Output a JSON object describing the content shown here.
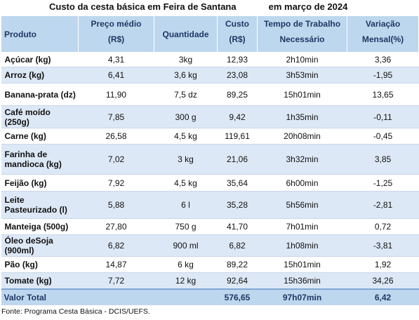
{
  "title": {
    "main": "Custo da cesta básica em Feira de Santana",
    "period": "em março de 2024"
  },
  "headers": {
    "produto": "Produto",
    "preco_line1": "Preço médio",
    "preco_line2": "(R$)",
    "quantidade": "Quantidade",
    "custo_line1": "Custo",
    "custo_line2": "(R$)",
    "tempo_line1": "Tempo de Trabalho",
    "tempo_line2": "Necessário",
    "variacao_line1": "Variação",
    "variacao_line2": "Mensal(%)"
  },
  "rows": [
    {
      "produto": "Açúcar (kg)",
      "preco": "4,31",
      "quantidade": "3kg",
      "custo": "12,93",
      "tempo": "2h10min",
      "variacao": "3,36"
    },
    {
      "produto": "Arroz (kg)",
      "preco": "6,41",
      "quantidade": "3,6 kg",
      "custo": "23,08",
      "tempo": "3h53min",
      "variacao": "-1,95"
    },
    {
      "produto": "Banana-prata (dz)",
      "preco": "11,90",
      "quantidade": "7,5 dz",
      "custo": "89,25",
      "tempo": "15h01min",
      "variacao": "13,65"
    },
    {
      "produto": "Café moído (250g)",
      "preco": "7,85",
      "quantidade": "300 g",
      "custo": "9,42",
      "tempo": "1h35min",
      "variacao": "-0,11"
    },
    {
      "produto": "Carne (kg)",
      "preco": "26,58",
      "quantidade": "4,5 kg",
      "custo": "119,61",
      "tempo": "20h08min",
      "variacao": "-0,45"
    },
    {
      "produto": "Farinha de mandioca (kg)",
      "preco": "7,02",
      "quantidade": "3 kg",
      "custo": "21,06",
      "tempo": "3h32min",
      "variacao": "3,85"
    },
    {
      "produto": "Feijão (kg)",
      "preco": "7,92",
      "quantidade": "4,5 kg",
      "custo": "35,64",
      "tempo": "6h00min",
      "variacao": "-1,25"
    },
    {
      "produto": "Leite Pasteurizado (l)",
      "preco": "5,88",
      "quantidade": "6 l",
      "custo": "35,28",
      "tempo": "5h56min",
      "variacao": "-2,81"
    },
    {
      "produto": "Manteiga (500g)",
      "preco": "27,80",
      "quantidade": "750 g",
      "custo": "41,70",
      "tempo": "7h01min",
      "variacao": "0,72"
    },
    {
      "produto": "Óleo deSoja (900ml)",
      "preco": "6,82",
      "quantidade": "900 ml",
      "custo": "6,82",
      "tempo": "1h08min",
      "variacao": "-3,81"
    },
    {
      "produto": "Pão (kg)",
      "preco": "14,87",
      "quantidade": "6 kg",
      "custo": "89,22",
      "tempo": "15h01min",
      "variacao": "1,92"
    },
    {
      "produto": "Tomate (kg)",
      "preco": "7,72",
      "quantidade": "12 kg",
      "custo": "92,64",
      "tempo": "15h36min",
      "variacao": "34,26"
    }
  ],
  "total": {
    "label": "Valor Total",
    "custo": "576,65",
    "tempo": "97h07min",
    "variacao": "6,42"
  },
  "source": "Fonte: Programa Cesta Básica - DCIS/UEFS."
}
